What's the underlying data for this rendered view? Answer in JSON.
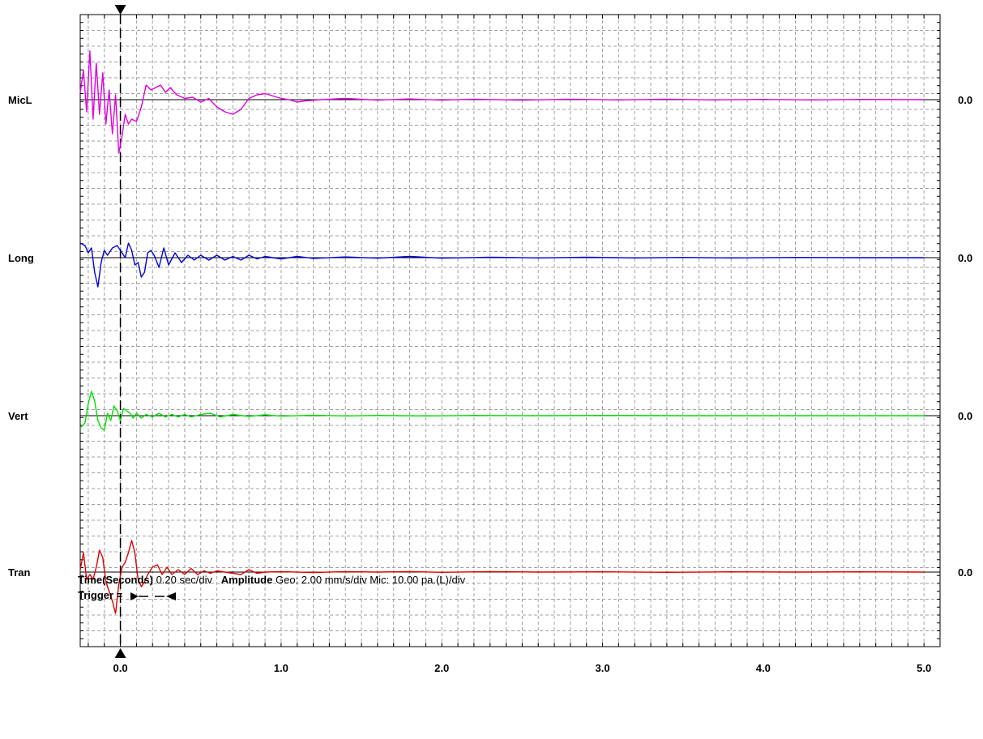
{
  "chart_data": {
    "type": "line",
    "x_ticks": [
      0.0,
      1.0,
      2.0,
      3.0,
      4.0,
      5.0
    ],
    "x_tick_labels": [
      "0.0",
      "1.0",
      "2.0",
      "3.0",
      "4.0",
      "5.0"
    ],
    "xlim": [
      -0.25,
      5.1
    ],
    "x_minor_step": 0.1,
    "grid": true,
    "trigger_time": 0.0,
    "amplitude_unit_divs": 1,
    "series": [
      {
        "name": "MicL",
        "color": "#e000e0",
        "right_label": "0.0",
        "points": [
          [
            -0.25,
            0.3
          ],
          [
            -0.23,
            1.2
          ],
          [
            -0.21,
            -0.5
          ],
          [
            -0.19,
            2.0
          ],
          [
            -0.17,
            -0.8
          ],
          [
            -0.15,
            1.5
          ],
          [
            -0.13,
            -0.6
          ],
          [
            -0.11,
            1.1
          ],
          [
            -0.09,
            -1.0
          ],
          [
            -0.07,
            0.4
          ],
          [
            -0.05,
            -1.4
          ],
          [
            -0.03,
            0.2
          ],
          [
            -0.01,
            -2.2
          ],
          [
            0.01,
            -1.5
          ],
          [
            0.03,
            -0.6
          ],
          [
            0.05,
            -1.0
          ],
          [
            0.07,
            -0.8
          ],
          [
            0.1,
            -0.9
          ],
          [
            0.13,
            -0.3
          ],
          [
            0.16,
            0.6
          ],
          [
            0.19,
            0.4
          ],
          [
            0.22,
            0.5
          ],
          [
            0.25,
            0.6
          ],
          [
            0.28,
            0.3
          ],
          [
            0.31,
            0.5
          ],
          [
            0.35,
            0.2
          ],
          [
            0.4,
            0.05
          ],
          [
            0.45,
            0.1
          ],
          [
            0.5,
            -0.1
          ],
          [
            0.55,
            0.05
          ],
          [
            0.6,
            -0.3
          ],
          [
            0.65,
            -0.5
          ],
          [
            0.7,
            -0.6
          ],
          [
            0.75,
            -0.4
          ],
          [
            0.8,
            0.05
          ],
          [
            0.85,
            0.2
          ],
          [
            0.9,
            0.25
          ],
          [
            0.95,
            0.15
          ],
          [
            1.0,
            0.05
          ],
          [
            1.05,
            0.0
          ],
          [
            1.1,
            -0.1
          ],
          [
            1.15,
            -0.05
          ],
          [
            1.25,
            0.0
          ],
          [
            1.4,
            0.05
          ],
          [
            1.6,
            -0.02
          ],
          [
            1.8,
            0.03
          ],
          [
            2.0,
            -0.02
          ],
          [
            2.2,
            0.02
          ],
          [
            2.5,
            -0.02
          ],
          [
            2.8,
            0.02
          ],
          [
            3.1,
            -0.01
          ],
          [
            3.4,
            0.02
          ],
          [
            3.7,
            -0.01
          ],
          [
            4.0,
            0.01
          ],
          [
            4.3,
            -0.01
          ],
          [
            4.6,
            0.01
          ],
          [
            5.0,
            0.0
          ]
        ]
      },
      {
        "name": "Long",
        "color": "#0000e0",
        "right_label": "0.0",
        "points": [
          [
            -0.25,
            0.6
          ],
          [
            -0.22,
            0.5
          ],
          [
            -0.2,
            0.2
          ],
          [
            -0.18,
            0.4
          ],
          [
            -0.16,
            -0.6
          ],
          [
            -0.14,
            -1.2
          ],
          [
            -0.12,
            -0.2
          ],
          [
            -0.1,
            0.3
          ],
          [
            -0.08,
            0.1
          ],
          [
            -0.05,
            0.4
          ],
          [
            -0.02,
            0.5
          ],
          [
            0.01,
            0.2
          ],
          [
            0.03,
            0.0
          ],
          [
            0.05,
            0.6
          ],
          [
            0.07,
            0.3
          ],
          [
            0.09,
            -0.3
          ],
          [
            0.11,
            -0.2
          ],
          [
            0.13,
            -0.8
          ],
          [
            0.15,
            -0.6
          ],
          [
            0.17,
            0.2
          ],
          [
            0.19,
            0.3
          ],
          [
            0.21,
            0.1
          ],
          [
            0.24,
            -0.4
          ],
          [
            0.27,
            0.4
          ],
          [
            0.3,
            -0.3
          ],
          [
            0.34,
            0.2
          ],
          [
            0.38,
            -0.2
          ],
          [
            0.42,
            0.1
          ],
          [
            0.46,
            -0.1
          ],
          [
            0.5,
            0.1
          ],
          [
            0.55,
            -0.1
          ],
          [
            0.6,
            0.1
          ],
          [
            0.65,
            -0.1
          ],
          [
            0.7,
            0.05
          ],
          [
            0.75,
            -0.1
          ],
          [
            0.8,
            0.1
          ],
          [
            0.85,
            -0.05
          ],
          [
            0.9,
            0.05
          ],
          [
            1.0,
            -0.05
          ],
          [
            1.1,
            0.05
          ],
          [
            1.2,
            -0.03
          ],
          [
            1.4,
            0.03
          ],
          [
            1.6,
            -0.02
          ],
          [
            1.8,
            0.05
          ],
          [
            2.0,
            -0.02
          ],
          [
            2.3,
            0.02
          ],
          [
            2.6,
            -0.01
          ],
          [
            2.9,
            0.02
          ],
          [
            3.2,
            -0.01
          ],
          [
            3.5,
            0.01
          ],
          [
            3.8,
            -0.01
          ],
          [
            4.2,
            0.01
          ],
          [
            4.6,
            0.0
          ],
          [
            5.0,
            0.0
          ]
        ]
      },
      {
        "name": "Vert",
        "color": "#00e000",
        "right_label": "0.0",
        "points": [
          [
            -0.25,
            -0.5
          ],
          [
            -0.22,
            -0.3
          ],
          [
            -0.2,
            0.5
          ],
          [
            -0.18,
            1.0
          ],
          [
            -0.16,
            0.6
          ],
          [
            -0.14,
            -0.2
          ],
          [
            -0.12,
            -0.5
          ],
          [
            -0.1,
            -0.6
          ],
          [
            -0.08,
            0.1
          ],
          [
            -0.06,
            -0.2
          ],
          [
            -0.04,
            0.4
          ],
          [
            -0.02,
            0.2
          ],
          [
            0.0,
            -0.2
          ],
          [
            0.02,
            0.3
          ],
          [
            0.04,
            0.2
          ],
          [
            0.06,
            0.1
          ],
          [
            0.08,
            -0.1
          ],
          [
            0.1,
            0.1
          ],
          [
            0.13,
            -0.1
          ],
          [
            0.16,
            0.05
          ],
          [
            0.2,
            -0.05
          ],
          [
            0.24,
            0.1
          ],
          [
            0.28,
            -0.05
          ],
          [
            0.32,
            0.05
          ],
          [
            0.36,
            -0.05
          ],
          [
            0.4,
            0.05
          ],
          [
            0.44,
            -0.05
          ],
          [
            0.5,
            0.05
          ],
          [
            0.56,
            0.1
          ],
          [
            0.62,
            -0.05
          ],
          [
            0.7,
            0.05
          ],
          [
            0.8,
            -0.03
          ],
          [
            0.9,
            0.04
          ],
          [
            1.0,
            -0.02
          ],
          [
            1.2,
            0.02
          ],
          [
            1.4,
            -0.01
          ],
          [
            1.6,
            0.01
          ],
          [
            1.9,
            -0.01
          ],
          [
            2.2,
            0.01
          ],
          [
            2.6,
            0.0
          ],
          [
            3.0,
            0.01
          ],
          [
            3.5,
            0.0
          ],
          [
            4.0,
            0.0
          ],
          [
            4.5,
            0.0
          ],
          [
            5.0,
            0.0
          ]
        ]
      },
      {
        "name": "Tran",
        "color": "#e00000",
        "right_label": "0.0",
        "points": [
          [
            -0.25,
            0.1
          ],
          [
            -0.23,
            0.8
          ],
          [
            -0.21,
            -0.3
          ],
          [
            -0.19,
            -0.1
          ],
          [
            -0.17,
            -0.3
          ],
          [
            -0.15,
            0.2
          ],
          [
            -0.13,
            0.9
          ],
          [
            -0.11,
            0.6
          ],
          [
            -0.09,
            -0.4
          ],
          [
            -0.07,
            -0.8
          ],
          [
            -0.05,
            -1.2
          ],
          [
            -0.03,
            -1.7
          ],
          [
            -0.01,
            -0.5
          ],
          [
            0.01,
            0.2
          ],
          [
            0.03,
            0.4
          ],
          [
            0.05,
            0.8
          ],
          [
            0.07,
            1.3
          ],
          [
            0.09,
            0.8
          ],
          [
            0.11,
            -0.3
          ],
          [
            0.13,
            -0.6
          ],
          [
            0.15,
            -0.4
          ],
          [
            0.17,
            -0.1
          ],
          [
            0.2,
            0.2
          ],
          [
            0.23,
            0.3
          ],
          [
            0.26,
            -0.1
          ],
          [
            0.29,
            0.2
          ],
          [
            0.32,
            -0.1
          ],
          [
            0.36,
            0.1
          ],
          [
            0.4,
            -0.1
          ],
          [
            0.44,
            0.15
          ],
          [
            0.48,
            -0.1
          ],
          [
            0.52,
            0.05
          ],
          [
            0.56,
            -0.05
          ],
          [
            0.6,
            0.05
          ],
          [
            0.65,
            0.0
          ],
          [
            0.7,
            -0.05
          ],
          [
            0.75,
            -0.1
          ],
          [
            0.8,
            0.1
          ],
          [
            0.85,
            -0.05
          ],
          [
            0.9,
            0.0
          ],
          [
            1.0,
            0.02
          ],
          [
            1.2,
            -0.02
          ],
          [
            1.4,
            0.02
          ],
          [
            1.6,
            0.0
          ],
          [
            1.8,
            0.02
          ],
          [
            2.0,
            -0.01
          ],
          [
            2.3,
            0.02
          ],
          [
            2.6,
            0.0
          ],
          [
            3.0,
            0.01
          ],
          [
            3.4,
            -0.01
          ],
          [
            3.8,
            0.01
          ],
          [
            4.2,
            0.0
          ],
          [
            4.6,
            0.01
          ],
          [
            5.0,
            0.0
          ]
        ]
      }
    ]
  },
  "footer": {
    "time_label": "Time(Seconds)",
    "time_value": "0.20 sec/div",
    "amplitude_label": "Amplitude",
    "amplitude_value": "Geo: 2.00 mm/s/div Mic: 10.00 pa.(L)/div",
    "trigger_label": "Trigger ="
  },
  "colors": {
    "grid": "#a0a0a0",
    "axis": "#000000",
    "background": "#ffffff"
  }
}
